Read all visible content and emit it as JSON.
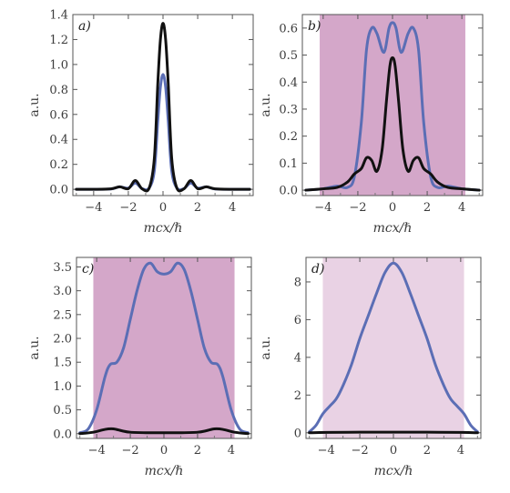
{
  "chart_data": [
    {
      "type": "line",
      "panel_label": "a)",
      "xlabel": "mcx/ℏ",
      "ylabel": "a.u.",
      "xlim": [
        -5.2,
        5.2
      ],
      "ylim": [
        -0.05,
        1.4
      ],
      "xticks": [
        -4,
        -2,
        0,
        2,
        4
      ],
      "xtick_labels": [
        "−4",
        "−2",
        "0",
        "2",
        "4"
      ],
      "yticks": [
        0.0,
        0.2,
        0.4,
        0.6,
        0.8,
        1.0,
        1.2,
        1.4
      ],
      "ytick_labels": [
        "0.0",
        "0.2",
        "0.4",
        "0.6",
        "0.8",
        "1.0",
        "1.2",
        "1.4"
      ],
      "shaded_region": null,
      "shade_color": null,
      "series": [
        {
          "color": "#5b6eb5",
          "x": [
            -5,
            -4,
            -3,
            -2.5,
            -2,
            -1.6,
            -1.2,
            -0.8,
            -0.5,
            -0.3,
            -0.15,
            0,
            0.15,
            0.3,
            0.5,
            0.8,
            1.2,
            1.6,
            2,
            2.5,
            3,
            4,
            5
          ],
          "y": [
            0,
            0,
            0.003,
            0.02,
            0.01,
            0.05,
            0.005,
            0.01,
            0.15,
            0.55,
            0.82,
            0.92,
            0.82,
            0.55,
            0.15,
            0.01,
            0.005,
            0.05,
            0.01,
            0.02,
            0.003,
            0,
            0
          ]
        },
        {
          "color": "#111111",
          "x": [
            -5,
            -4,
            -3,
            -2.5,
            -2,
            -1.6,
            -1.2,
            -0.8,
            -0.5,
            -0.3,
            -0.15,
            0,
            0.15,
            0.3,
            0.5,
            0.8,
            1.2,
            1.6,
            2,
            2.5,
            3,
            4,
            5
          ],
          "y": [
            0,
            0,
            0.004,
            0.02,
            0.005,
            0.07,
            0.003,
            0.01,
            0.25,
            0.85,
            1.2,
            1.33,
            1.2,
            0.85,
            0.25,
            0.01,
            0.003,
            0.07,
            0.005,
            0.02,
            0.004,
            0,
            0
          ]
        }
      ]
    },
    {
      "type": "line",
      "panel_label": "b)",
      "xlabel": "mcx/ℏ",
      "ylabel": "a.u.",
      "xlim": [
        -5.2,
        5.2
      ],
      "ylim": [
        -0.02,
        0.65
      ],
      "xticks": [
        -4,
        -2,
        0,
        2,
        4
      ],
      "xtick_labels": [
        "−4",
        "−2",
        "0",
        "2",
        "4"
      ],
      "yticks": [
        0.0,
        0.1,
        0.2,
        0.3,
        0.4,
        0.5,
        0.6
      ],
      "ytick_labels": [
        "0.0",
        "0.1",
        "0.2",
        "0.3",
        "0.4",
        "0.5",
        "0.6"
      ],
      "shaded_region": [
        -4.2,
        4.2
      ],
      "shade_color": "#d4a7c9",
      "series": [
        {
          "color": "#5b6eb5",
          "x": [
            -5,
            -4,
            -3.2,
            -2.6,
            -2.2,
            -1.8,
            -1.5,
            -1.2,
            -0.9,
            -0.5,
            -0.2,
            0,
            0.2,
            0.5,
            0.9,
            1.2,
            1.5,
            1.8,
            2.2,
            2.6,
            3.2,
            4,
            5
          ],
          "y": [
            0,
            0.005,
            0.015,
            0.01,
            0.05,
            0.25,
            0.52,
            0.6,
            0.58,
            0.51,
            0.6,
            0.62,
            0.6,
            0.51,
            0.58,
            0.6,
            0.52,
            0.25,
            0.05,
            0.01,
            0.015,
            0.005,
            0
          ]
        },
        {
          "color": "#111111",
          "x": [
            -5,
            -4,
            -3.2,
            -2.6,
            -2.2,
            -1.8,
            -1.5,
            -1.2,
            -0.9,
            -0.6,
            -0.35,
            -0.15,
            0,
            0.15,
            0.35,
            0.6,
            0.9,
            1.2,
            1.5,
            1.8,
            2.2,
            2.6,
            3.2,
            4,
            5
          ],
          "y": [
            0,
            0.005,
            0.01,
            0.03,
            0.06,
            0.08,
            0.12,
            0.11,
            0.07,
            0.15,
            0.33,
            0.46,
            0.49,
            0.46,
            0.33,
            0.15,
            0.07,
            0.11,
            0.12,
            0.08,
            0.06,
            0.03,
            0.01,
            0.005,
            0
          ]
        }
      ]
    },
    {
      "type": "line",
      "panel_label": "c)",
      "xlabel": "mcx/ℏ",
      "ylabel": "a.u.",
      "xlim": [
        -5.2,
        5.2
      ],
      "ylim": [
        -0.1,
        3.7
      ],
      "xticks": [
        -4,
        -2,
        0,
        2,
        4
      ],
      "xtick_labels": [
        "−4",
        "−2",
        "0",
        "2",
        "4"
      ],
      "yticks": [
        0.0,
        0.5,
        1.0,
        1.5,
        2.0,
        2.5,
        3.0,
        3.5
      ],
      "ytick_labels": [
        "0.0",
        "0.5",
        "1.0",
        "1.5",
        "2.0",
        "2.5",
        "3.0",
        "3.5"
      ],
      "shaded_region": [
        -4.2,
        4.2
      ],
      "shade_color": "#d4a7c9",
      "series": [
        {
          "color": "#5b6eb5",
          "x": [
            -5,
            -4.5,
            -4,
            -3.5,
            -3.2,
            -2.8,
            -2.4,
            -2,
            -1.6,
            -1.2,
            -0.8,
            -0.4,
            0,
            0.4,
            0.8,
            1.2,
            1.6,
            2,
            2.4,
            2.8,
            3.2,
            3.5,
            4,
            4.5,
            5
          ],
          "y": [
            0.02,
            0.1,
            0.5,
            1.2,
            1.45,
            1.5,
            1.8,
            2.4,
            3.0,
            3.45,
            3.58,
            3.4,
            3.35,
            3.4,
            3.58,
            3.45,
            3.0,
            2.4,
            1.8,
            1.5,
            1.45,
            1.2,
            0.5,
            0.1,
            0.02
          ]
        },
        {
          "color": "#111111",
          "x": [
            -5,
            -4.2,
            -3.5,
            -3.0,
            -2.5,
            -2,
            -1,
            0,
            1,
            2,
            2.5,
            3.0,
            3.5,
            4.2,
            5
          ],
          "y": [
            0,
            0.03,
            0.09,
            0.1,
            0.06,
            0.03,
            0.02,
            0.02,
            0.02,
            0.03,
            0.06,
            0.1,
            0.09,
            0.03,
            0
          ]
        }
      ]
    },
    {
      "type": "line",
      "panel_label": "d)",
      "xlabel": "mcx/ℏ",
      "ylabel": "a.u.",
      "xlim": [
        -5.2,
        5.2
      ],
      "ylim": [
        -0.3,
        9.3
      ],
      "xticks": [
        -4,
        -2,
        0,
        2,
        4
      ],
      "xtick_labels": [
        "−4",
        "−2",
        "0",
        "2",
        "4"
      ],
      "yticks": [
        0,
        2,
        4,
        6,
        8
      ],
      "ytick_labels": [
        "0",
        "2",
        "4",
        "6",
        "8"
      ],
      "shaded_region": [
        -4.2,
        4.2
      ],
      "shade_color": "#e9d2e4",
      "series": [
        {
          "color": "#5b6eb5",
          "x": [
            -5,
            -4.6,
            -4.2,
            -3.8,
            -3.4,
            -3,
            -2.5,
            -2,
            -1.5,
            -1,
            -0.5,
            0,
            0.5,
            1,
            1.5,
            2,
            2.5,
            3,
            3.4,
            3.8,
            4.2,
            4.6,
            5
          ],
          "y": [
            0.05,
            0.4,
            1.0,
            1.4,
            1.8,
            2.5,
            3.6,
            5.0,
            6.2,
            7.4,
            8.5,
            9.0,
            8.5,
            7.4,
            6.2,
            5.0,
            3.6,
            2.5,
            1.8,
            1.4,
            1.0,
            0.4,
            0.05
          ]
        },
        {
          "color": "#111111",
          "x": [
            -5,
            -4,
            -2,
            0,
            2,
            4,
            5
          ],
          "y": [
            0,
            0.02,
            0.03,
            0.03,
            0.03,
            0.02,
            0
          ]
        }
      ]
    }
  ]
}
